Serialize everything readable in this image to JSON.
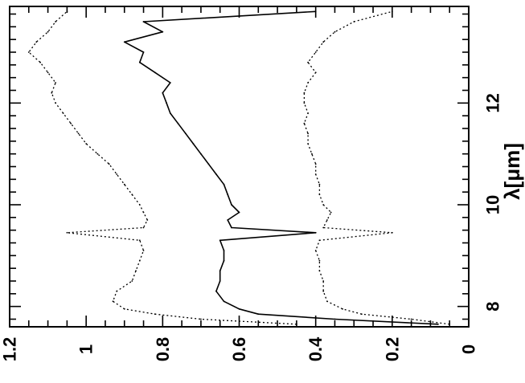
{
  "chart_data": {
    "type": "line",
    "orientation": "rotated-90-ccw",
    "xlabel": "λ[μm]",
    "ylabel": "",
    "title": "",
    "xlim": [
      7.6,
      13.9
    ],
    "ylim": [
      0,
      1.2
    ],
    "x_tick_labels": [
      "8",
      "10",
      "12"
    ],
    "x_ticks": [
      8,
      10,
      12
    ],
    "y_tick_labels": [
      "0",
      "0.2",
      "0.4",
      "0.6",
      "0.8",
      "1",
      "1.2"
    ],
    "y_ticks": [
      0,
      0.2,
      0.4,
      0.6,
      0.8,
      1.0,
      1.2
    ],
    "grid": false,
    "legend": false,
    "series": [
      {
        "style": "dotted-upper",
        "color": "#000000",
        "x": [
          7.65,
          7.75,
          7.85,
          7.95,
          8.1,
          8.3,
          8.5,
          8.7,
          8.9,
          9.1,
          9.3,
          9.45,
          9.55,
          9.7,
          9.85,
          10.0,
          10.2,
          10.4,
          10.6,
          10.8,
          11.0,
          11.2,
          11.4,
          11.6,
          11.8,
          12.0,
          12.2,
          12.4,
          12.6,
          12.8,
          13.0,
          13.2,
          13.4,
          13.6,
          13.8
        ],
        "values": [
          0.45,
          0.7,
          0.82,
          0.9,
          0.93,
          0.92,
          0.88,
          0.87,
          0.86,
          0.85,
          0.86,
          1.05,
          0.85,
          0.84,
          0.85,
          0.86,
          0.88,
          0.9,
          0.92,
          0.94,
          0.97,
          1.0,
          1.02,
          1.04,
          1.06,
          1.08,
          1.09,
          1.08,
          1.1,
          1.12,
          1.15,
          1.13,
          1.1,
          1.08,
          1.05
        ]
      },
      {
        "style": "solid-middle",
        "color": "#000000",
        "x": [
          7.65,
          7.75,
          7.85,
          7.95,
          8.1,
          8.3,
          8.5,
          8.7,
          8.9,
          9.1,
          9.3,
          9.45,
          9.55,
          9.7,
          9.85,
          10.0,
          10.2,
          10.4,
          10.6,
          10.8,
          11.0,
          11.2,
          11.4,
          11.6,
          11.8,
          12.0,
          12.2,
          12.4,
          12.6,
          12.8,
          13.0,
          13.2,
          13.4,
          13.6,
          13.8
        ],
        "values": [
          0.08,
          0.35,
          0.55,
          0.6,
          0.64,
          0.66,
          0.65,
          0.65,
          0.64,
          0.64,
          0.65,
          0.4,
          0.62,
          0.63,
          0.6,
          0.62,
          0.63,
          0.64,
          0.66,
          0.68,
          0.7,
          0.72,
          0.74,
          0.76,
          0.78,
          0.79,
          0.8,
          0.78,
          0.82,
          0.86,
          0.85,
          0.9,
          0.8,
          0.85,
          0.4
        ]
      },
      {
        "style": "dotted-lower",
        "color": "#000000",
        "x": [
          7.65,
          7.75,
          7.85,
          7.95,
          8.1,
          8.3,
          8.5,
          8.7,
          8.9,
          9.1,
          9.3,
          9.45,
          9.55,
          9.7,
          9.85,
          10.0,
          10.2,
          10.4,
          10.6,
          10.8,
          11.0,
          11.2,
          11.4,
          11.6,
          11.8,
          12.0,
          12.2,
          12.4,
          12.6,
          12.8,
          13.0,
          13.2,
          13.4,
          13.6,
          13.8
        ],
        "values": [
          0.05,
          0.15,
          0.28,
          0.33,
          0.37,
          0.38,
          0.38,
          0.39,
          0.39,
          0.4,
          0.39,
          0.2,
          0.38,
          0.37,
          0.36,
          0.38,
          0.39,
          0.39,
          0.4,
          0.4,
          0.41,
          0.42,
          0.42,
          0.43,
          0.42,
          0.43,
          0.43,
          0.42,
          0.4,
          0.42,
          0.4,
          0.38,
          0.35,
          0.3,
          0.2
        ]
      }
    ]
  }
}
